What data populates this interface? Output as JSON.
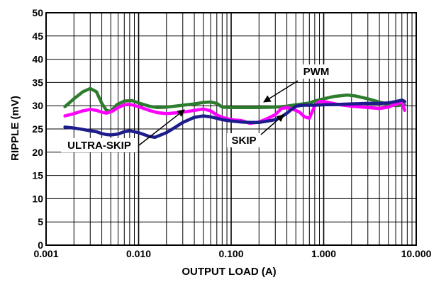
{
  "chart_data": {
    "type": "line",
    "title": "",
    "xlabel": "OUTPUT LOAD (A)",
    "ylabel": "RIPPLE (mV)",
    "xscale": "log",
    "xlim": [
      0.001,
      10
    ],
    "ylim": [
      0,
      50
    ],
    "grid": true,
    "xticks": [
      "0.001",
      "0.010",
      "0.100",
      "1.000",
      "10.000"
    ],
    "yticks": [
      "0",
      "5",
      "10",
      "15",
      "20",
      "25",
      "30",
      "35",
      "40",
      "45",
      "50"
    ],
    "annotations": [
      {
        "text": "PWM",
        "series": "PWM"
      },
      {
        "text": "ULTRA-SKIP",
        "series": "ULTRA-SKIP"
      },
      {
        "text": "SKIP",
        "series": "SKIP"
      }
    ],
    "series": [
      {
        "name": "PWM",
        "color": "#2e7d2e",
        "x": [
          0.0016,
          0.002,
          0.0025,
          0.003,
          0.0035,
          0.004,
          0.0045,
          0.005,
          0.0058,
          0.007,
          0.0085,
          0.01,
          0.013,
          0.016,
          0.02,
          0.03,
          0.04,
          0.05,
          0.06,
          0.07,
          0.08,
          0.1,
          0.15,
          0.2,
          0.3,
          0.4,
          0.5,
          0.6,
          0.7,
          0.8,
          1.0,
          1.3,
          1.8,
          2.2,
          3.0,
          4.0,
          5.0,
          6.0,
          7.5
        ],
        "y": [
          29.8,
          31.5,
          33.0,
          33.7,
          33.0,
          30.5,
          29.0,
          28.8,
          30.2,
          31.0,
          31.1,
          30.6,
          29.9,
          29.6,
          29.7,
          30.1,
          30.4,
          30.7,
          30.8,
          30.5,
          29.7,
          29.6,
          29.6,
          29.6,
          29.7,
          29.9,
          30.2,
          30.4,
          30.6,
          31.0,
          31.5,
          32.0,
          32.3,
          32.1,
          31.5,
          30.8,
          30.3,
          30.0,
          30.2
        ]
      },
      {
        "name": "ULTRA-SKIP",
        "color": "#ff00ff",
        "x": [
          0.0016,
          0.002,
          0.0025,
          0.003,
          0.0035,
          0.004,
          0.0045,
          0.0052,
          0.006,
          0.007,
          0.008,
          0.01,
          0.013,
          0.016,
          0.02,
          0.03,
          0.04,
          0.05,
          0.06,
          0.07,
          0.08,
          0.1,
          0.13,
          0.16,
          0.2,
          0.25,
          0.3,
          0.35,
          0.4,
          0.45,
          0.5,
          0.55,
          0.62,
          0.7,
          0.8,
          0.9,
          1.0,
          1.2,
          1.5,
          2.0,
          3.0,
          4.0,
          5.0,
          6.0,
          7.0,
          7.5
        ],
        "y": [
          27.8,
          28.3,
          28.9,
          29.2,
          29.0,
          28.6,
          28.4,
          28.8,
          29.6,
          30.2,
          30.3,
          29.8,
          29.0,
          28.5,
          28.3,
          28.6,
          29.0,
          29.3,
          28.9,
          28.0,
          27.5,
          27.0,
          26.8,
          26.2,
          26.5,
          27.3,
          28.1,
          29.4,
          29.6,
          29.3,
          29.0,
          28.6,
          27.6,
          27.3,
          30.0,
          30.9,
          30.9,
          30.6,
          30.2,
          29.9,
          29.6,
          29.4,
          29.7,
          30.3,
          30.8,
          29.0
        ]
      },
      {
        "name": "SKIP",
        "color": "#1c1c8c",
        "x": [
          0.0016,
          0.002,
          0.0025,
          0.003,
          0.0035,
          0.004,
          0.0045,
          0.005,
          0.006,
          0.007,
          0.008,
          0.01,
          0.013,
          0.015,
          0.02,
          0.025,
          0.03,
          0.04,
          0.05,
          0.06,
          0.07,
          0.08,
          0.1,
          0.13,
          0.16,
          0.2,
          0.25,
          0.3,
          0.35,
          0.4,
          0.45,
          0.5,
          0.6,
          0.8,
          1.0,
          1.5,
          2.0,
          3.0,
          4.0,
          5.0,
          6.0,
          7.0,
          7.5
        ],
        "y": [
          25.4,
          25.2,
          24.9,
          24.6,
          24.4,
          24.0,
          23.8,
          23.7,
          23.9,
          24.4,
          24.6,
          24.2,
          23.4,
          23.2,
          24.2,
          25.4,
          26.4,
          27.5,
          27.8,
          27.6,
          27.3,
          27.0,
          26.7,
          26.5,
          26.4,
          26.4,
          26.7,
          27.0,
          27.6,
          28.4,
          29.2,
          29.9,
          30.1,
          30.1,
          30.2,
          30.3,
          30.4,
          30.5,
          30.5,
          30.6,
          30.9,
          31.2,
          30.9
        ]
      }
    ]
  }
}
